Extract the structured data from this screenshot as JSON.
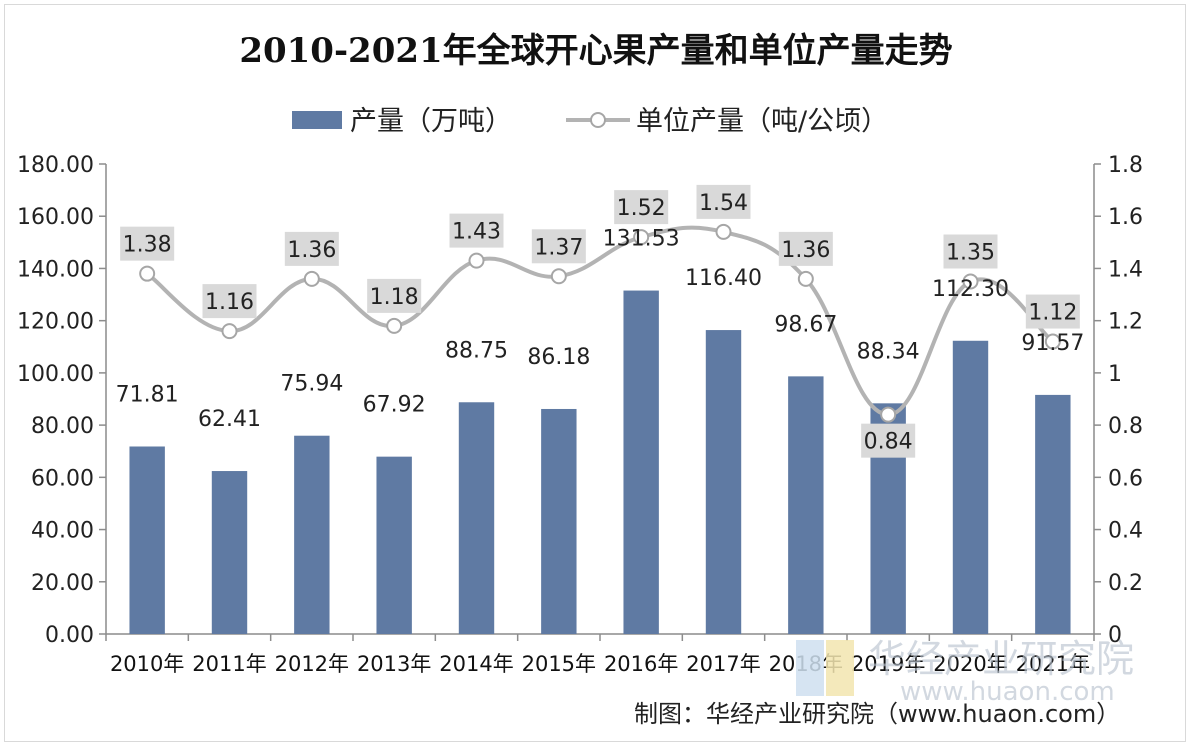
{
  "chart_data": {
    "type": "bar",
    "title": "2010-2021年全球开心果产量和单位产量走势",
    "categories": [
      "2010年",
      "2011年",
      "2012年",
      "2013年",
      "2014年",
      "2015年",
      "2016年",
      "2017年",
      "2018年",
      "2019年",
      "2020年",
      "2021年"
    ],
    "series": [
      {
        "name": "产量（万吨）",
        "type": "bar",
        "axis": "left",
        "color": "#5f7aa3",
        "values": [
          71.81,
          62.41,
          75.94,
          67.92,
          88.75,
          86.18,
          131.53,
          116.4,
          98.67,
          88.34,
          112.3,
          91.57
        ],
        "labels": [
          "71.81",
          "62.41",
          "75.94",
          "67.92",
          "88.75",
          "86.18",
          "131.53",
          "116.40",
          "98.67",
          "88.34",
          "112.30",
          "91.57"
        ]
      },
      {
        "name": "单位产量（吨/公顷）",
        "type": "line",
        "axis": "right",
        "color": "#b3b3b3",
        "values": [
          1.38,
          1.16,
          1.36,
          1.18,
          1.43,
          1.37,
          1.52,
          1.54,
          1.36,
          0.84,
          1.35,
          1.12
        ],
        "labels": [
          "1.38",
          "1.16",
          "1.36",
          "1.18",
          "1.43",
          "1.37",
          "1.52",
          "1.54",
          "1.36",
          "0.84",
          "1.35",
          "1.12"
        ]
      }
    ],
    "y_left": {
      "min": 0,
      "max": 180,
      "ticks": [
        "0.00",
        "20.00",
        "40.00",
        "60.00",
        "80.00",
        "100.00",
        "120.00",
        "140.00",
        "160.00",
        "180.00"
      ]
    },
    "y_right": {
      "min": 0,
      "max": 1.8,
      "ticks": [
        "0",
        "0.2",
        "0.4",
        "0.6",
        "0.8",
        "1",
        "1.2",
        "1.4",
        "1.6",
        "1.8"
      ]
    },
    "grid": false,
    "legend": "top"
  },
  "source": "制图：华经产业研究院（www.huaon.com）",
  "watermark": {
    "name": "华经产业研究院",
    "url": "www.huaon.com"
  }
}
